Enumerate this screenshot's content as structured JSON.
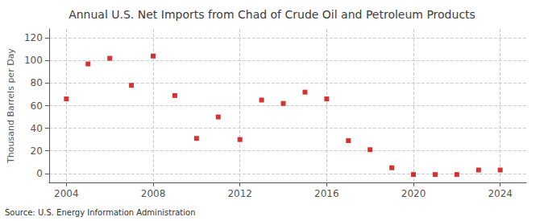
{
  "chart_data": {
    "type": "scatter",
    "title": "Annual U.S. Net Imports from Chad of Crude Oil and Petroleum Products",
    "ylabel": "Thousand Barrels per Day",
    "annotation": "Source: U.S. Energy Information Administration",
    "x": [
      2004,
      2005,
      2006,
      2007,
      2008,
      2009,
      2010,
      2011,
      2012,
      2013,
      2014,
      2015,
      2016,
      2017,
      2018,
      2019,
      2020,
      2021,
      2022,
      2023,
      2024
    ],
    "values": [
      66,
      97,
      102,
      78,
      104,
      69,
      31,
      50,
      30,
      65,
      62,
      72,
      66,
      29,
      21,
      5,
      -1,
      -1,
      -1,
      3,
      3
    ],
    "color": "#cc0000",
    "marker": "square",
    "xlim": [
      2003.2,
      2025.2
    ],
    "xticks": [
      2004,
      2008,
      2012,
      2016,
      2020,
      2024
    ],
    "ylim": [
      -8,
      128
    ],
    "yticks": [
      0,
      20,
      40,
      60,
      80,
      100,
      120
    ],
    "grid": true
  }
}
